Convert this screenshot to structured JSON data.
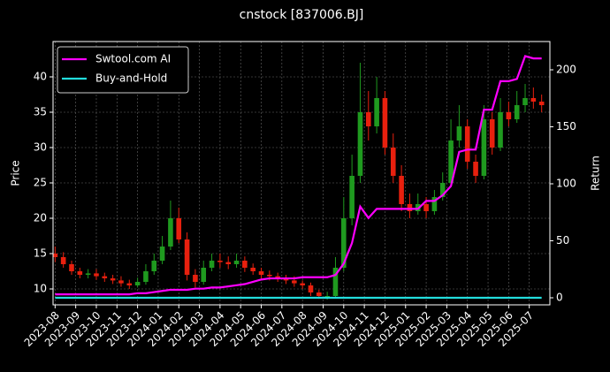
{
  "chart_data": {
    "type": "candlestick",
    "title": "cnstock [837006.BJ]",
    "ylabel": "Price",
    "y2label": "Return",
    "up_color": "#1f9a1f",
    "down_color": "#e8200e",
    "grid": true,
    "legend": "upper left",
    "x": [
      0,
      0.4,
      0.8,
      1.2,
      1.6,
      2.0,
      2.4,
      2.8,
      3.2,
      3.6,
      4.0,
      4.4,
      4.8,
      5.2,
      5.6,
      6.0,
      6.4,
      6.8,
      7.2,
      7.6,
      8.0,
      8.4,
      8.8,
      9.2,
      9.6,
      10.0,
      10.4,
      10.8,
      11.2,
      11.6,
      12.0,
      12.4,
      12.8,
      13.2,
      13.6,
      14.0,
      14.4,
      14.8,
      15.2,
      15.6,
      16.0,
      16.4,
      16.8,
      17.2,
      17.6,
      18.0,
      18.4,
      18.8,
      19.2,
      19.6,
      20.0,
      20.4,
      20.8,
      21.2,
      21.6,
      22.0,
      22.4,
      22.8,
      23.2,
      23.6
    ],
    "open": [
      15,
      14.5,
      13.5,
      12.5,
      12,
      12.2,
      11.8,
      11.5,
      11.2,
      10.8,
      10.5,
      11,
      12.5,
      14,
      16,
      20,
      17,
      12,
      11,
      13,
      14,
      13.8,
      13.5,
      14,
      13,
      12.5,
      12,
      11.8,
      11.5,
      11.2,
      10.8,
      10.5,
      9.5,
      9,
      9,
      13,
      20,
      26,
      35,
      33,
      37,
      30,
      26,
      22,
      21,
      22,
      21,
      23,
      25,
      31,
      33,
      28,
      26,
      34,
      30,
      35,
      34,
      36,
      37,
      36.5
    ],
    "high": [
      16,
      15.2,
      14,
      13,
      12.8,
      12.8,
      12.3,
      12,
      11.8,
      11.3,
      11.6,
      13.5,
      15,
      17.5,
      22.5,
      21.5,
      18,
      12.8,
      14,
      15,
      15,
      14.6,
      15,
      14.6,
      13.6,
      13,
      12.6,
      12.3,
      12,
      11.8,
      11.2,
      10.9,
      9.9,
      9.6,
      14.5,
      23,
      29,
      42,
      38,
      40,
      38,
      32,
      27.5,
      23.5,
      23.5,
      23,
      24,
      26.5,
      34,
      36,
      34,
      29,
      36,
      35,
      37,
      36.5,
      38,
      39,
      38.5,
      37.5
    ],
    "low": [
      13.8,
      13,
      12,
      11.5,
      11.5,
      11.3,
      11,
      10.7,
      10.3,
      10,
      10.2,
      10.6,
      12,
      13.5,
      15.5,
      16.5,
      11.2,
      10.2,
      10.6,
      12.5,
      13,
      12.8,
      13,
      12.4,
      12,
      11.5,
      11.2,
      11,
      10.7,
      10.3,
      10,
      9,
      8.6,
      8.5,
      8.8,
      12.5,
      19,
      25,
      31,
      32,
      29,
      25,
      21,
      20,
      20.5,
      20,
      20.5,
      22.5,
      24.5,
      30,
      27,
      25,
      25.5,
      29,
      29.5,
      33,
      33.5,
      35,
      35.5,
      35
    ],
    "close": [
      14.5,
      13.5,
      12.5,
      12,
      12.2,
      11.8,
      11.5,
      11.2,
      10.8,
      10.5,
      11,
      12.5,
      14,
      16,
      20,
      17,
      12,
      11,
      13,
      14,
      13.8,
      13.5,
      14,
      13,
      12.5,
      12,
      11.8,
      11.5,
      11.2,
      10.8,
      10.5,
      9.5,
      9,
      9,
      13,
      20,
      26,
      35,
      33,
      37,
      30,
      26,
      22,
      21,
      22,
      21,
      23,
      25,
      31,
      33,
      28,
      26,
      34,
      30,
      35,
      34,
      36,
      37,
      36.5,
      36
    ],
    "series": [
      {
        "name": "Swtool.com AI",
        "color": "#ff00ff",
        "axis": "y2",
        "values": [
          3,
          3,
          3,
          3,
          3,
          3,
          3,
          3,
          3,
          3,
          4,
          4,
          5,
          6,
          7,
          7,
          7,
          8,
          8,
          9,
          9,
          10,
          11,
          12,
          14,
          16,
          17,
          17,
          17,
          17,
          18,
          18,
          18,
          18,
          20,
          30,
          48,
          80,
          70,
          78,
          78,
          78,
          78,
          78,
          78,
          85,
          85,
          90,
          98,
          128,
          130,
          130,
          165,
          165,
          190,
          190,
          192,
          212,
          210,
          210
        ]
      },
      {
        "name": "Buy-and-Hold",
        "color": "#22dddd",
        "axis": "y2",
        "values": [
          0,
          0,
          0,
          0,
          0,
          0,
          0,
          0,
          0,
          0,
          0,
          0,
          0,
          0,
          0,
          0,
          0,
          0,
          0,
          0,
          0,
          0,
          0,
          0,
          0,
          0,
          0,
          0,
          0,
          0,
          0,
          0,
          0,
          0,
          0,
          0,
          0,
          0,
          0,
          0,
          0,
          0,
          0,
          0,
          0,
          0,
          0,
          0,
          0,
          0,
          0,
          0,
          0,
          0,
          0,
          0,
          0,
          0,
          0,
          0
        ]
      }
    ],
    "xlim": [
      -0.1,
      24
    ],
    "xticks": [
      {
        "value": 0,
        "label": "2023-08"
      },
      {
        "value": 1,
        "label": "2023-09"
      },
      {
        "value": 2,
        "label": "2023-10"
      },
      {
        "value": 3,
        "label": "2023-11"
      },
      {
        "value": 4,
        "label": "2023-12"
      },
      {
        "value": 5,
        "label": "2024-01"
      },
      {
        "value": 6,
        "label": "2024-02"
      },
      {
        "value": 7,
        "label": "2024-03"
      },
      {
        "value": 8,
        "label": "2024-04"
      },
      {
        "value": 9,
        "label": "2024-05"
      },
      {
        "value": 10,
        "label": "2024-06"
      },
      {
        "value": 11,
        "label": "2024-07"
      },
      {
        "value": 12,
        "label": "2024-08"
      },
      {
        "value": 13,
        "label": "2024-09"
      },
      {
        "value": 14,
        "label": "2024-10"
      },
      {
        "value": 15,
        "label": "2024-11"
      },
      {
        "value": 16,
        "label": "2024-12"
      },
      {
        "value": 17,
        "label": "2025-01"
      },
      {
        "value": 18,
        "label": "2025-02"
      },
      {
        "value": 19,
        "label": "2025-03"
      },
      {
        "value": 20,
        "label": "2025-04"
      },
      {
        "value": 21,
        "label": "2025-05"
      },
      {
        "value": 22,
        "label": "2025-06"
      },
      {
        "value": 23,
        "label": "2025-07"
      }
    ],
    "ylim": [
      7.75,
      45
    ],
    "yticks": [
      10,
      15,
      20,
      25,
      30,
      35,
      40
    ],
    "y2lim": [
      -6.2,
      224.8
    ],
    "y2ticks": [
      0,
      50,
      100,
      150,
      200
    ]
  }
}
